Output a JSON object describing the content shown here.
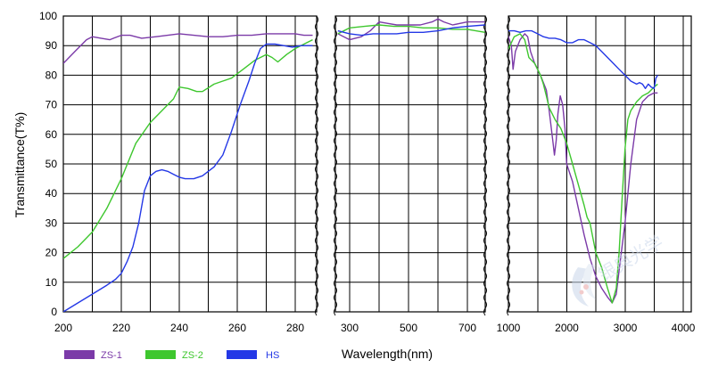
{
  "chart_data": {
    "type": "line",
    "ylabel": "Transmittance(T%)",
    "xlabel": "Wavelength(nm)",
    "ylim": [
      0,
      100
    ],
    "y_ticks": [
      0,
      10,
      20,
      30,
      40,
      50,
      60,
      70,
      80,
      90,
      100
    ],
    "grid": true,
    "legend_position": "bottom-left",
    "panels": [
      {
        "id": "uv",
        "xlim": [
          200,
          286
        ],
        "x_ticks": [
          200,
          220,
          240,
          260,
          280
        ]
      },
      {
        "id": "vis",
        "xlim": [
          260,
          760
        ],
        "x_ticks": [
          300,
          500,
          700
        ]
      },
      {
        "id": "ir",
        "xlim": [
          950,
          3950
        ],
        "x_ticks": [
          1000,
          2000,
          3000,
          4000
        ]
      }
    ],
    "series": [
      {
        "name": "ZS-1",
        "color": "#7b3aa8",
        "panels": [
          [
            [
              200,
              84
            ],
            [
              204,
              88
            ],
            [
              208,
              92
            ],
            [
              210,
              93
            ],
            [
              213,
              92.5
            ],
            [
              216,
              92
            ],
            [
              220,
              93.5
            ],
            [
              223,
              93.5
            ],
            [
              227,
              92.5
            ],
            [
              232,
              93
            ],
            [
              236,
              93.5
            ],
            [
              240,
              94
            ],
            [
              245,
              93.5
            ],
            [
              250,
              93
            ],
            [
              255,
              93
            ],
            [
              260,
              93.5
            ],
            [
              265,
              93.5
            ],
            [
              270,
              94
            ],
            [
              275,
              94
            ],
            [
              280,
              94
            ],
            [
              283,
              93.5
            ],
            [
              286,
              93.5
            ]
          ],
          [
            [
              260,
              94
            ],
            [
              300,
              92
            ],
            [
              340,
              93
            ],
            [
              370,
              95
            ],
            [
              400,
              98
            ],
            [
              430,
              97.5
            ],
            [
              460,
              97
            ],
            [
              500,
              97
            ],
            [
              540,
              97
            ],
            [
              580,
              98
            ],
            [
              600,
              99
            ],
            [
              620,
              98
            ],
            [
              650,
              97
            ],
            [
              700,
              98
            ],
            [
              760,
              98
            ]
          ],
          [
            [
              950,
              96
            ],
            [
              1000,
              93
            ],
            [
              1050,
              90
            ],
            [
              1080,
              82
            ],
            [
              1120,
              88
            ],
            [
              1200,
              92
            ],
            [
              1280,
              94
            ],
            [
              1330,
              93
            ],
            [
              1380,
              88
            ],
            [
              1450,
              84
            ],
            [
              1550,
              80
            ],
            [
              1650,
              75
            ],
            [
              1700,
              68
            ],
            [
              1760,
              58
            ],
            [
              1790,
              53
            ],
            [
              1820,
              58
            ],
            [
              1850,
              67
            ],
            [
              1890,
              73
            ],
            [
              1930,
              70
            ],
            [
              1970,
              62
            ],
            [
              2000,
              50
            ],
            [
              2100,
              44
            ],
            [
              2200,
              35
            ],
            [
              2300,
              26
            ],
            [
              2400,
              18
            ],
            [
              2500,
              12
            ],
            [
              2600,
              8
            ],
            [
              2700,
              5
            ],
            [
              2780,
              3
            ],
            [
              2850,
              6
            ],
            [
              2900,
              14
            ],
            [
              3000,
              30
            ],
            [
              3100,
              50
            ],
            [
              3200,
              65
            ],
            [
              3300,
              71
            ],
            [
              3400,
              73
            ],
            [
              3500,
              74
            ],
            [
              3560,
              74
            ]
          ]
        ]
      },
      {
        "name": "ZS-2",
        "color": "#3ec72e",
        "panels": [
          [
            [
              200,
              18
            ],
            [
              205,
              22
            ],
            [
              210,
              27
            ],
            [
              215,
              35
            ],
            [
              220,
              45
            ],
            [
              225,
              57
            ],
            [
              230,
              64
            ],
            [
              235,
              69
            ],
            [
              238,
              72
            ],
            [
              240,
              76
            ],
            [
              243,
              75.5
            ],
            [
              246,
              74.5
            ],
            [
              248,
              74.5
            ],
            [
              252,
              77
            ],
            [
              255,
              78
            ],
            [
              258,
              79
            ],
            [
              262,
              82
            ],
            [
              266,
              85
            ],
            [
              270,
              87
            ],
            [
              272,
              86
            ],
            [
              274,
              84.5
            ],
            [
              277,
              87
            ],
            [
              280,
              89
            ],
            [
              284,
              91
            ],
            [
              286,
              92
            ]
          ],
          [
            [
              260,
              94
            ],
            [
              300,
              96
            ],
            [
              350,
              96.5
            ],
            [
              400,
              97
            ],
            [
              450,
              96.5
            ],
            [
              500,
              96.5
            ],
            [
              550,
              96
            ],
            [
              600,
              96
            ],
            [
              650,
              95.5
            ],
            [
              700,
              95.5
            ],
            [
              760,
              94.5
            ]
          ],
          [
            [
              950,
              88
            ],
            [
              1000,
              89
            ],
            [
              1050,
              91
            ],
            [
              1100,
              93
            ],
            [
              1200,
              94
            ],
            [
              1280,
              92
            ],
            [
              1350,
              86
            ],
            [
              1400,
              85
            ],
            [
              1450,
              84
            ],
            [
              1500,
              82
            ],
            [
              1550,
              80
            ],
            [
              1600,
              77
            ],
            [
              1650,
              73
            ],
            [
              1700,
              69
            ],
            [
              1800,
              65
            ],
            [
              1900,
              62
            ],
            [
              2000,
              57
            ],
            [
              2100,
              50
            ],
            [
              2200,
              43
            ],
            [
              2300,
              36
            ],
            [
              2350,
              32
            ],
            [
              2400,
              30
            ],
            [
              2450,
              25
            ],
            [
              2500,
              20
            ],
            [
              2600,
              15
            ],
            [
              2700,
              8
            ],
            [
              2780,
              3
            ],
            [
              2850,
              8
            ],
            [
              2900,
              20
            ],
            [
              2950,
              38
            ],
            [
              3000,
              55
            ],
            [
              3050,
              65
            ],
            [
              3100,
              68
            ],
            [
              3200,
              71
            ],
            [
              3300,
              73
            ],
            [
              3400,
              74
            ],
            [
              3500,
              76
            ],
            [
              3560,
              77
            ]
          ]
        ]
      },
      {
        "name": "HS",
        "color": "#2438e6",
        "panels": [
          [
            [
              200,
              0
            ],
            [
              205,
              3
            ],
            [
              210,
              6
            ],
            [
              215,
              9
            ],
            [
              218,
              11
            ],
            [
              220,
              13
            ],
            [
              222,
              17
            ],
            [
              224,
              22
            ],
            [
              226,
              30
            ],
            [
              228,
              41
            ],
            [
              230,
              46
            ],
            [
              232,
              47.5
            ],
            [
              234,
              48
            ],
            [
              236,
              47.5
            ],
            [
              238,
              46.5
            ],
            [
              240,
              45.5
            ],
            [
              242,
              45
            ],
            [
              245,
              45
            ],
            [
              248,
              46
            ],
            [
              252,
              49
            ],
            [
              255,
              53
            ],
            [
              258,
              61
            ],
            [
              261,
              70
            ],
            [
              264,
              78
            ],
            [
              266,
              84
            ],
            [
              268,
              89
            ],
            [
              270,
              90.5
            ],
            [
              273,
              90.5
            ],
            [
              276,
              90
            ],
            [
              279,
              89.5
            ],
            [
              282,
              90
            ],
            [
              286,
              90
            ]
          ],
          [
            [
              260,
              95
            ],
            [
              300,
              94
            ],
            [
              340,
              93.5
            ],
            [
              380,
              94
            ],
            [
              420,
              94
            ],
            [
              460,
              94
            ],
            [
              500,
              94.5
            ],
            [
              550,
              94.5
            ],
            [
              600,
              95
            ],
            [
              650,
              96
            ],
            [
              700,
              96.5
            ],
            [
              760,
              97
            ]
          ],
          [
            [
              950,
              96
            ],
            [
              1000,
              95
            ],
            [
              1100,
              95
            ],
            [
              1200,
              94.5
            ],
            [
              1300,
              95
            ],
            [
              1400,
              95
            ],
            [
              1500,
              94
            ],
            [
              1600,
              93
            ],
            [
              1700,
              92.5
            ],
            [
              1800,
              92.5
            ],
            [
              1900,
              92
            ],
            [
              2000,
              91
            ],
            [
              2100,
              91
            ],
            [
              2200,
              92
            ],
            [
              2300,
              92
            ],
            [
              2400,
              91
            ],
            [
              2500,
              90
            ],
            [
              2600,
              88
            ],
            [
              2700,
              86
            ],
            [
              2800,
              84
            ],
            [
              2900,
              82
            ],
            [
              3000,
              80
            ],
            [
              3100,
              78
            ],
            [
              3200,
              77
            ],
            [
              3250,
              77.5
            ],
            [
              3300,
              77
            ],
            [
              3350,
              75.5
            ],
            [
              3400,
              77
            ],
            [
              3450,
              76
            ],
            [
              3500,
              75.5
            ],
            [
              3530,
              79
            ],
            [
              3560,
              80
            ]
          ]
        ]
      }
    ]
  },
  "watermark": "银典光学"
}
